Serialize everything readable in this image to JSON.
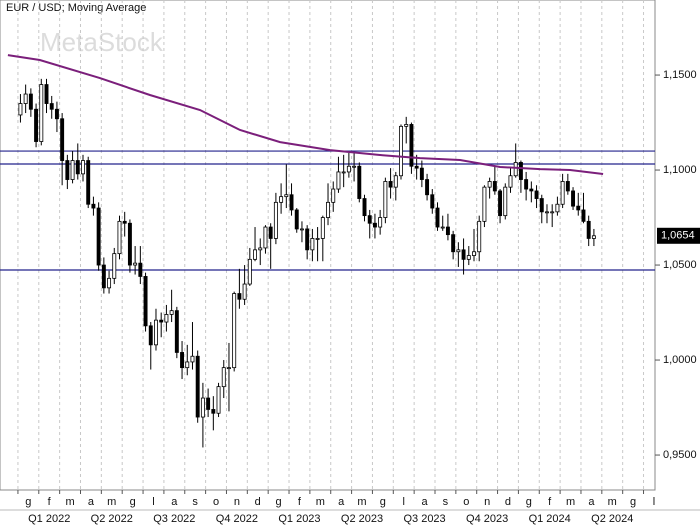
{
  "chart_data": {
    "type": "candlestick",
    "title": "EUR / USD; Moving Average",
    "watermark": "MetaStock",
    "xlim": [
      -0.86,
      30.55
    ],
    "ylim": [
      0.9316,
      1.1895
    ],
    "yticks": [
      {
        "value": 0.95,
        "label": "0,9500"
      },
      {
        "value": 1.0,
        "label": "1,0000"
      },
      {
        "value": 1.05,
        "label": "1,0500"
      },
      {
        "value": 1.1,
        "label": "1,1000"
      },
      {
        "value": 1.15,
        "label": "1,1500"
      }
    ],
    "xticks": [
      {
        "value": 0,
        "label": "g"
      },
      {
        "value": 1,
        "label": "f"
      },
      {
        "value": 2,
        "label": "m"
      },
      {
        "value": 3,
        "label": "a"
      },
      {
        "value": 4,
        "label": "m"
      },
      {
        "value": 5,
        "label": "g"
      },
      {
        "value": 6,
        "label": "l"
      },
      {
        "value": 7,
        "label": "a"
      },
      {
        "value": 8,
        "label": "s"
      },
      {
        "value": 9,
        "label": "o"
      },
      {
        "value": 10,
        "label": "n"
      },
      {
        "value": 11,
        "label": "d"
      },
      {
        "value": 12,
        "label": "g"
      },
      {
        "value": 13,
        "label": "f"
      },
      {
        "value": 14,
        "label": "m"
      },
      {
        "value": 15,
        "label": "a"
      },
      {
        "value": 16,
        "label": "m"
      },
      {
        "value": 17,
        "label": "g"
      },
      {
        "value": 18,
        "label": "l"
      },
      {
        "value": 19,
        "label": "a"
      },
      {
        "value": 20,
        "label": "s"
      },
      {
        "value": 21,
        "label": "o"
      },
      {
        "value": 22,
        "label": "n"
      },
      {
        "value": 23,
        "label": "d"
      },
      {
        "value": 24,
        "label": "g"
      },
      {
        "value": 25,
        "label": "f"
      },
      {
        "value": 26,
        "label": "m"
      },
      {
        "value": 27,
        "label": "a"
      },
      {
        "value": 28,
        "label": "m"
      },
      {
        "value": 29,
        "label": "g"
      },
      {
        "value": 30,
        "label": "l"
      }
    ],
    "quarters": [
      {
        "value": 0,
        "label": "Q1 2022"
      },
      {
        "value": 3,
        "label": "Q2 2022"
      },
      {
        "value": 6,
        "label": "Q3 2022"
      },
      {
        "value": 9,
        "label": "Q4 2022"
      },
      {
        "value": 12,
        "label": "Q1 2023"
      },
      {
        "value": 15,
        "label": "Q2 2023"
      },
      {
        "value": 18,
        "label": "Q3 2023"
      },
      {
        "value": 21,
        "label": "Q4 2023"
      },
      {
        "value": 24,
        "label": "Q1 2024"
      },
      {
        "value": 27,
        "label": "Q2 2024"
      }
    ],
    "grid": true,
    "up_color": "#ffffff",
    "down_color": "#000000",
    "x": [
      0.12,
      0.37,
      0.62,
      0.87,
      1.12,
      1.37,
      1.62,
      1.87,
      2.12,
      2.37,
      2.62,
      2.87,
      3.12,
      3.37,
      3.62,
      3.87,
      4.12,
      4.37,
      4.62,
      4.87,
      5.12,
      5.37,
      5.62,
      5.87,
      6.12,
      6.37,
      6.62,
      6.87,
      7.12,
      7.37,
      7.62,
      7.87,
      8.12,
      8.37,
      8.62,
      8.87,
      9.12,
      9.37,
      9.62,
      9.87,
      10.12,
      10.37,
      10.62,
      10.87,
      11.12,
      11.37,
      11.62,
      11.87,
      12.12,
      12.37,
      12.62,
      12.87,
      13.12,
      13.37,
      13.62,
      13.87,
      14.12,
      14.37,
      14.62,
      14.87,
      15.12,
      15.37,
      15.62,
      15.87,
      16.12,
      16.37,
      16.62,
      16.87,
      17.12,
      17.37,
      17.62,
      17.87,
      18.12,
      18.37,
      18.62,
      18.87,
      19.12,
      19.37,
      19.62,
      19.87,
      20.12,
      20.37,
      20.62,
      20.87,
      21.12,
      21.37,
      21.62,
      21.87,
      22.12,
      22.37,
      22.62,
      22.87,
      23.12,
      23.37,
      23.62,
      23.87,
      24.12,
      24.37,
      24.62,
      24.87,
      25.12,
      25.37,
      25.62,
      25.87,
      26.12,
      26.37,
      26.62,
      26.87,
      27.12,
      27.37,
      27.62
    ],
    "open": [
      1.129,
      1.135,
      1.14,
      1.132,
      1.115,
      1.145,
      1.135,
      1.132,
      1.127,
      1.105,
      1.095,
      1.105,
      1.098,
      1.105,
      1.082,
      1.08,
      1.05,
      1.038,
      1.043,
      1.056,
      1.073,
      1.072,
      1.05,
      1.051,
      1.044,
      1.018,
      1.008,
      1.021,
      1.02,
      1.024,
      1.026,
      1.004,
      0.996,
      0.999,
      1.002,
      0.97,
      0.98,
      0.974,
      0.972,
      0.986,
      0.996,
      0.996,
      1.035,
      1.032,
      1.04,
      1.053,
      1.058,
      1.059,
      1.07,
      1.064,
      1.083,
      1.086,
      1.087,
      1.079,
      1.069,
      1.069,
      1.058,
      1.064,
      1.064,
      1.075,
      1.083,
      1.09,
      1.099,
      1.099,
      1.102,
      1.102,
      1.085,
      1.076,
      1.072,
      1.07,
      1.075,
      1.094,
      1.091,
      1.097,
      1.123,
      1.124,
      1.102,
      1.101,
      1.095,
      1.087,
      1.08,
      1.07,
      1.07,
      1.066,
      1.057,
      1.058,
      1.053,
      1.055,
      1.057,
      1.073,
      1.091,
      1.094,
      1.089,
      1.076,
      1.091,
      1.097,
      1.104,
      1.095,
      1.09,
      1.089,
      1.085,
      1.078,
      1.078,
      1.078,
      1.082,
      1.094,
      1.089,
      1.081,
      1.079,
      1.073,
      1.064
    ],
    "high": [
      1.14,
      1.145,
      1.143,
      1.135,
      1.148,
      1.148,
      1.139,
      1.136,
      1.13,
      1.108,
      1.11,
      1.114,
      1.108,
      1.107,
      1.086,
      1.083,
      1.054,
      1.047,
      1.059,
      1.076,
      1.078,
      1.074,
      1.06,
      1.06,
      1.046,
      1.02,
      1.027,
      1.025,
      1.029,
      1.037,
      1.028,
      1.01,
      1.008,
      1.02,
      1.005,
      0.988,
      0.985,
      0.981,
      0.988,
      1.0,
      1.009,
      1.036,
      1.048,
      1.05,
      1.059,
      1.07,
      1.064,
      1.071,
      1.072,
      1.088,
      1.093,
      1.103,
      1.093,
      1.08,
      1.073,
      1.071,
      1.069,
      1.07,
      1.076,
      1.093,
      1.094,
      1.107,
      1.108,
      1.109,
      1.109,
      1.104,
      1.087,
      1.079,
      1.077,
      1.079,
      1.096,
      1.101,
      1.099,
      1.124,
      1.128,
      1.125,
      1.108,
      1.105,
      1.098,
      1.09,
      1.083,
      1.076,
      1.077,
      1.068,
      1.062,
      1.064,
      1.06,
      1.069,
      1.076,
      1.092,
      1.096,
      1.102,
      1.09,
      1.093,
      1.101,
      1.114,
      1.105,
      1.099,
      1.094,
      1.092,
      1.087,
      1.082,
      1.082,
      1.086,
      1.098,
      1.098,
      1.091,
      1.088,
      1.088,
      1.076,
      1.069
    ],
    "low": [
      1.125,
      1.13,
      1.128,
      1.112,
      1.113,
      1.13,
      1.127,
      1.12,
      1.092,
      1.09,
      1.093,
      1.095,
      1.094,
      1.08,
      1.076,
      1.047,
      1.035,
      1.035,
      1.04,
      1.053,
      1.065,
      1.046,
      1.045,
      1.04,
      1.015,
      0.995,
      1.005,
      1.012,
      1.015,
      1.02,
      1.001,
      0.99,
      0.992,
      0.995,
      0.967,
      0.954,
      0.97,
      0.963,
      0.97,
      0.98,
      0.973,
      0.994,
      1.027,
      1.029,
      1.039,
      1.052,
      1.05,
      1.056,
      1.048,
      1.061,
      1.077,
      1.08,
      1.076,
      1.067,
      1.062,
      1.053,
      1.052,
      1.052,
      1.052,
      1.071,
      1.078,
      1.088,
      1.091,
      1.096,
      1.094,
      1.083,
      1.073,
      1.064,
      1.064,
      1.066,
      1.072,
      1.085,
      1.084,
      1.095,
      1.114,
      1.098,
      1.095,
      1.091,
      1.084,
      1.077,
      1.068,
      1.068,
      1.063,
      1.053,
      1.049,
      1.045,
      1.05,
      1.052,
      1.052,
      1.07,
      1.085,
      1.087,
      1.072,
      1.074,
      1.088,
      1.096,
      1.088,
      1.084,
      1.083,
      1.08,
      1.072,
      1.072,
      1.07,
      1.076,
      1.08,
      1.087,
      1.079,
      1.076,
      1.072,
      1.06,
      1.06
    ],
    "close": [
      1.135,
      1.14,
      1.132,
      1.115,
      1.145,
      1.135,
      1.132,
      1.127,
      1.105,
      1.095,
      1.105,
      1.098,
      1.105,
      1.082,
      1.08,
      1.05,
      1.038,
      1.043,
      1.056,
      1.073,
      1.072,
      1.05,
      1.051,
      1.044,
      1.018,
      1.008,
      1.021,
      1.02,
      1.024,
      1.026,
      1.004,
      0.996,
      0.999,
      1.002,
      0.97,
      0.98,
      0.974,
      0.972,
      0.986,
      0.996,
      0.996,
      1.035,
      1.032,
      1.04,
      1.053,
      1.058,
      1.059,
      1.07,
      1.064,
      1.083,
      1.086,
      1.087,
      1.079,
      1.069,
      1.069,
      1.058,
      1.064,
      1.064,
      1.075,
      1.083,
      1.09,
      1.099,
      1.099,
      1.102,
      1.102,
      1.085,
      1.076,
      1.072,
      1.07,
      1.075,
      1.094,
      1.091,
      1.097,
      1.123,
      1.124,
      1.102,
      1.101,
      1.095,
      1.087,
      1.08,
      1.07,
      1.07,
      1.066,
      1.057,
      1.058,
      1.053,
      1.055,
      1.057,
      1.073,
      1.091,
      1.094,
      1.089,
      1.076,
      1.091,
      1.097,
      1.104,
      1.095,
      1.09,
      1.089,
      1.085,
      1.078,
      1.078,
      1.078,
      1.082,
      1.094,
      1.089,
      1.081,
      1.079,
      1.073,
      1.064,
      1.0654
    ],
    "last_price": {
      "value": 1.0654,
      "label": "1,0654"
    },
    "moving_average": {
      "color": "#7b1f7b",
      "x": [
        -0.48,
        1.05,
        3.93,
        6.33,
        8.73,
        10.65,
        12.57,
        14.97,
        17.36,
        19.28,
        21.2,
        23.12,
        25.04,
        26.48,
        28.06
      ],
      "values": [
        1.1605,
        1.1579,
        1.1484,
        1.1395,
        1.1316,
        1.1211,
        1.1147,
        1.1105,
        1.1079,
        1.1063,
        1.1053,
        1.1016,
        1.1005,
        1.1,
        1.0979
      ]
    },
    "hlines": {
      "color": "#23238c",
      "values": [
        1.11,
        1.1032,
        1.0474
      ]
    }
  }
}
